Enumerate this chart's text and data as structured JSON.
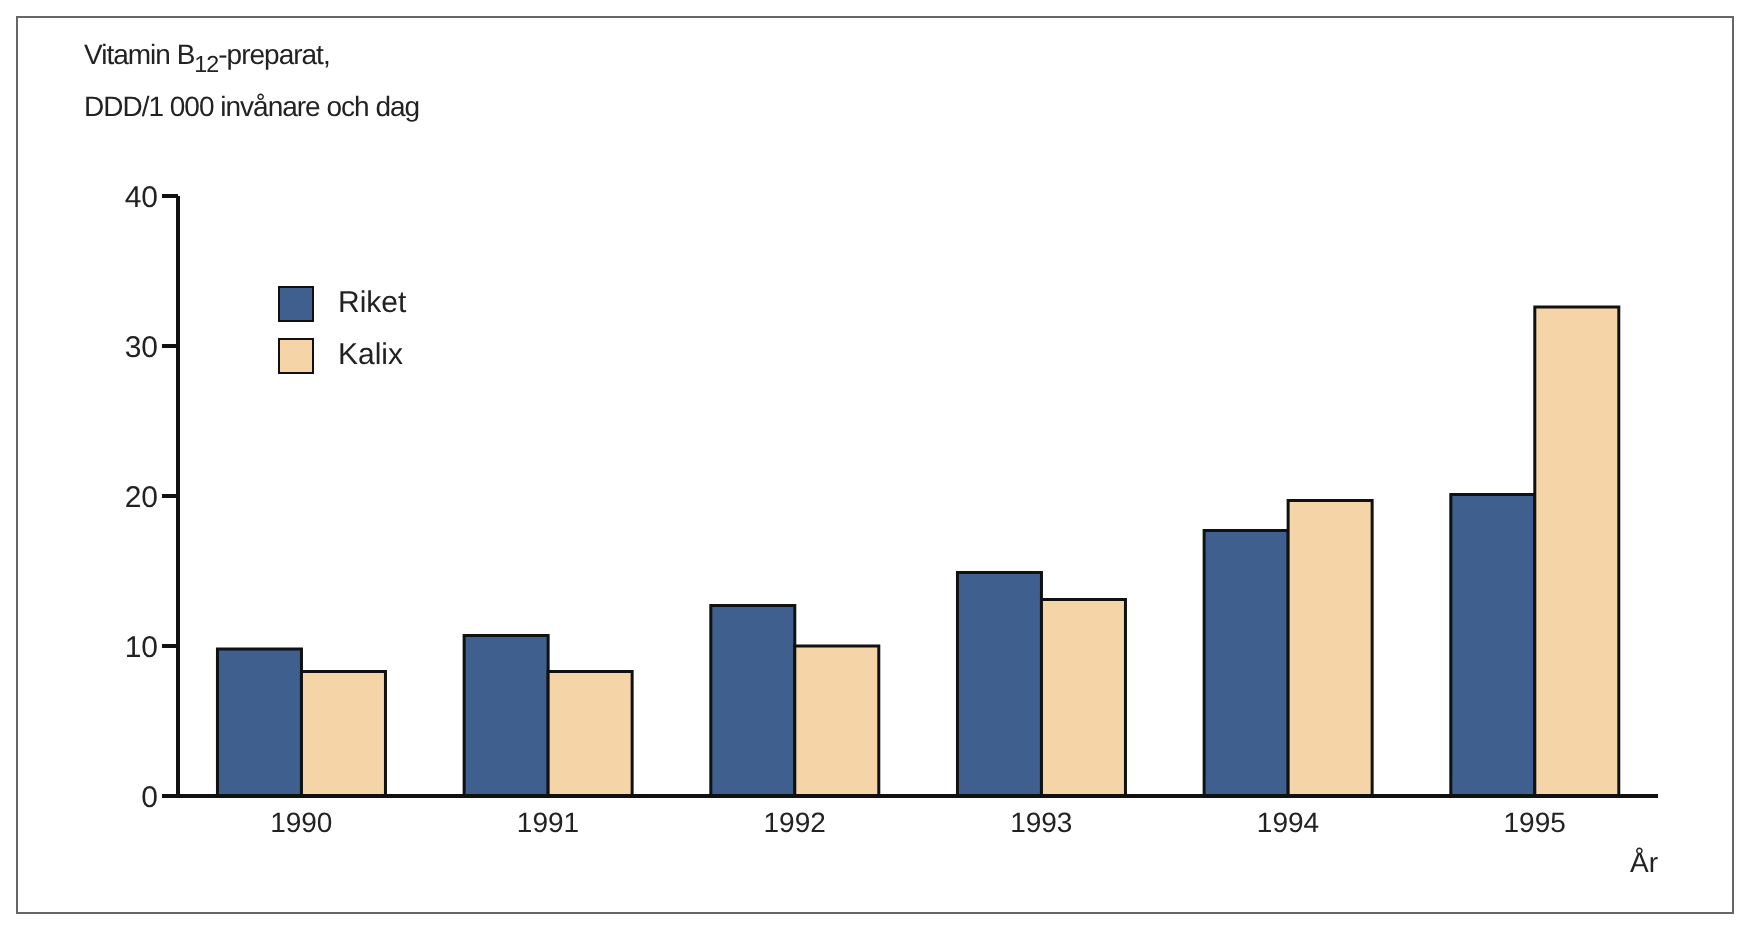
{
  "chart_data": {
    "type": "bar",
    "ylabel": "Vitamin B$_{12}$-preparat,\nDDD/1 000 invånare och dag",
    "xlabel": "År",
    "categories": [
      "1990",
      "1991",
      "1992",
      "1993",
      "1994",
      "1995"
    ],
    "series": [
      {
        "name": "Riket",
        "color": "#3f5f8f",
        "values": [
          9.8,
          10.7,
          12.7,
          14.9,
          17.7,
          20.1
        ]
      },
      {
        "name": "Kalix",
        "color": "#f5d4a8",
        "values": [
          8.3,
          8.3,
          10.0,
          13.1,
          19.7,
          32.6
        ]
      }
    ],
    "ylim": [
      0,
      40
    ],
    "yticks": [
      0,
      10,
      20,
      30,
      40
    ],
    "grid": false,
    "legend": "top left"
  }
}
